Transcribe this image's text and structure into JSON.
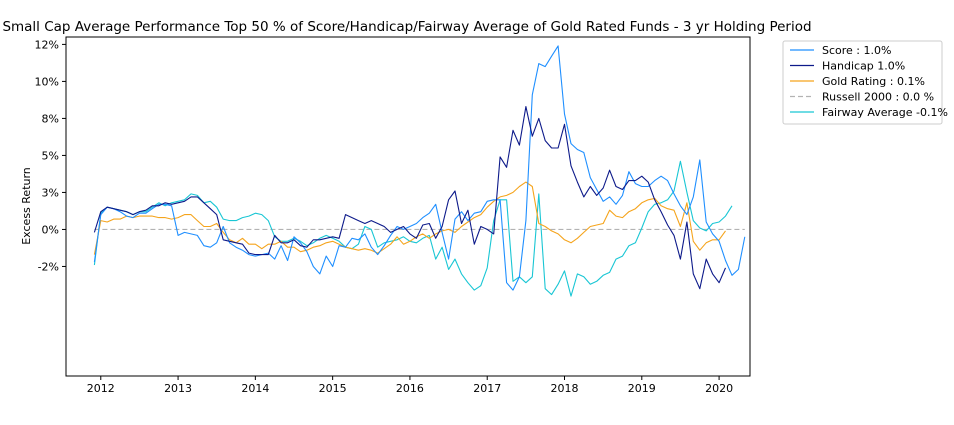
{
  "chart_data": {
    "type": "line",
    "title": "Small Cap Average Performance Top 50 % of Score/Handicap/Fairway Average of Gold Rated Funds - 3 yr Holding Period",
    "xlabel": "",
    "ylabel": "Excess Return",
    "xlim": [
      2011.55,
      2020.4
    ],
    "ylim": [
      -0.099,
      0.13
    ],
    "xticks": [
      2012,
      2013,
      2014,
      2015,
      2016,
      2017,
      2018,
      2019,
      2020
    ],
    "xtick_labels": [
      "2012",
      "2013",
      "2014",
      "2015",
      "2016",
      "2017",
      "2018",
      "2019",
      "2020"
    ],
    "yticks": [
      -0.025,
      0.0,
      0.025,
      0.05,
      0.075,
      0.1,
      0.125
    ],
    "ytick_labels": [
      "-2%",
      "0%",
      "3%",
      "5%",
      "8%",
      "10%",
      "12%"
    ],
    "grid": false,
    "legend_position": "outside-right",
    "x_start": 2011.917,
    "x_step": 0.08333,
    "series": [
      {
        "name": "Score : 1.0%",
        "color": "#1f8fff",
        "dash": "solid",
        "values": [
          -0.022,
          0.01,
          0.015,
          0.014,
          0.012,
          0.009,
          0.008,
          0.011,
          0.011,
          0.014,
          0.017,
          0.017,
          0.016,
          -0.004,
          -0.002,
          -0.003,
          -0.004,
          -0.011,
          -0.012,
          -0.009,
          0.002,
          -0.009,
          -0.012,
          -0.014,
          -0.017,
          -0.018,
          -0.017,
          -0.016,
          -0.02,
          -0.011,
          -0.021,
          -0.005,
          -0.009,
          -0.015,
          -0.025,
          -0.03,
          -0.018,
          -0.025,
          -0.011,
          -0.012,
          -0.006,
          -0.007,
          -0.003,
          -0.012,
          -0.017,
          -0.011,
          -0.004,
          0.002,
          0.0,
          0.002,
          0.004,
          0.008,
          0.011,
          0.017,
          -0.002,
          -0.02,
          0.007,
          0.012,
          0.006,
          0.011,
          0.012,
          0.019,
          0.02,
          0.02,
          -0.036,
          -0.041,
          -0.032,
          0.006,
          0.091,
          0.112,
          0.11,
          0.117,
          0.124,
          0.078,
          0.058,
          0.054,
          0.052,
          0.035,
          0.027,
          0.019,
          0.022,
          0.017,
          0.023,
          0.039,
          0.031,
          0.029,
          0.029,
          0.033,
          0.036,
          0.033,
          0.024,
          0.016,
          0.01,
          0.022,
          0.047,
          0.005,
          -0.003,
          -0.008,
          -0.021,
          -0.031,
          -0.027,
          -0.005
        ]
      },
      {
        "name": "Handicap 1.0%",
        "color": "#0d1a8a",
        "dash": "solid",
        "values": [
          -0.002,
          0.012,
          0.015,
          0.014,
          0.013,
          0.012,
          0.01,
          0.012,
          0.013,
          0.016,
          0.016,
          0.018,
          0.017,
          0.018,
          0.019,
          0.022,
          0.022,
          0.018,
          0.014,
          0.01,
          -0.007,
          -0.008,
          -0.009,
          -0.01,
          -0.016,
          -0.017,
          -0.017,
          -0.017,
          -0.004,
          -0.009,
          -0.009,
          -0.007,
          -0.011,
          -0.012,
          -0.007,
          -0.007,
          -0.006,
          -0.005,
          -0.006,
          0.01,
          0.008,
          0.006,
          0.004,
          0.006,
          0.004,
          0.002,
          -0.002,
          0.0,
          0.002,
          -0.003,
          -0.006,
          0.003,
          0.004,
          -0.006,
          0.002,
          0.02,
          0.026,
          0.004,
          0.013,
          -0.01,
          0.002,
          0.0,
          -0.003,
          0.049,
          0.042,
          0.067,
          0.057,
          0.083,
          0.063,
          0.075,
          0.06,
          0.055,
          0.055,
          0.071,
          0.043,
          0.032,
          0.022,
          0.029,
          0.023,
          0.028,
          0.04,
          0.029,
          0.027,
          0.033,
          0.033,
          0.036,
          0.032,
          0.02,
          0.012,
          0.003,
          -0.004,
          -0.02,
          0.005,
          -0.03,
          -0.04,
          -0.02,
          -0.03,
          -0.036,
          -0.026
        ]
      },
      {
        "name": "Gold Rating : 0.1%",
        "color": "#f5a41c",
        "dash": "solid",
        "values": [
          -0.017,
          0.006,
          0.005,
          0.007,
          0.007,
          0.009,
          0.008,
          0.009,
          0.009,
          0.009,
          0.008,
          0.008,
          0.007,
          0.008,
          0.01,
          0.01,
          0.006,
          0.002,
          0.002,
          0.004,
          -0.002,
          -0.007,
          -0.009,
          -0.006,
          -0.01,
          -0.01,
          -0.013,
          -0.01,
          -0.01,
          -0.008,
          -0.012,
          -0.012,
          -0.015,
          -0.014,
          -0.012,
          -0.011,
          -0.009,
          -0.008,
          -0.01,
          -0.012,
          -0.013,
          -0.014,
          -0.013,
          -0.014,
          -0.016,
          -0.013,
          -0.01,
          -0.005,
          -0.01,
          -0.008,
          -0.005,
          -0.003,
          -0.006,
          -0.003,
          -0.001,
          0.0,
          -0.002,
          0.002,
          0.005,
          0.008,
          0.01,
          0.015,
          0.019,
          0.022,
          0.023,
          0.025,
          0.029,
          0.032,
          0.029,
          0.004,
          0.002,
          -0.001,
          -0.003,
          -0.007,
          -0.009,
          -0.006,
          -0.002,
          0.002,
          0.003,
          0.004,
          0.013,
          0.009,
          0.008,
          0.012,
          0.014,
          0.018,
          0.02,
          0.021,
          0.016,
          0.014,
          0.013,
          0.002,
          0.018,
          -0.008,
          -0.014,
          -0.009,
          -0.007,
          -0.007,
          -0.001
        ]
      },
      {
        "name": "Russell 2000 : 0.0 %",
        "color": "#b3b3b3",
        "dash": "dashed",
        "values": [
          0,
          0,
          0,
          0,
          0,
          0,
          0,
          0,
          0,
          0,
          0,
          0,
          0,
          0,
          0,
          0,
          0,
          0,
          0,
          0,
          0,
          0,
          0,
          0,
          0,
          0,
          0,
          0,
          0,
          0,
          0,
          0,
          0,
          0,
          0,
          0,
          0,
          0,
          0,
          0,
          0,
          0,
          0,
          0,
          0,
          0,
          0,
          0,
          0,
          0,
          0,
          0,
          0,
          0,
          0,
          0,
          0,
          0,
          0,
          0,
          0,
          0,
          0,
          0,
          0,
          0,
          0,
          0,
          0,
          0,
          0,
          0,
          0,
          0,
          0,
          0,
          0,
          0,
          0,
          0,
          0,
          0,
          0,
          0,
          0,
          0,
          0,
          0,
          0,
          0,
          0,
          0,
          0,
          0,
          0,
          0,
          0,
          0,
          0,
          0,
          0,
          0
        ]
      },
      {
        "name": "Fairway Average -0.1%",
        "color": "#19c6d4",
        "dash": "solid",
        "values": [
          -0.024,
          0.011,
          0.015,
          0.014,
          0.013,
          0.012,
          0.01,
          0.012,
          0.012,
          0.015,
          0.018,
          0.016,
          0.018,
          0.019,
          0.02,
          0.024,
          0.023,
          0.018,
          0.019,
          0.015,
          0.007,
          0.006,
          0.006,
          0.008,
          0.009,
          0.011,
          0.01,
          0.006,
          -0.005,
          -0.008,
          -0.008,
          -0.006,
          -0.008,
          -0.011,
          -0.009,
          -0.006,
          -0.004,
          -0.006,
          -0.008,
          -0.012,
          -0.013,
          -0.01,
          0.002,
          0.0,
          -0.012,
          -0.009,
          -0.008,
          -0.007,
          -0.005,
          -0.008,
          -0.009,
          -0.006,
          -0.004,
          -0.02,
          -0.012,
          -0.027,
          -0.02,
          -0.03,
          -0.036,
          -0.041,
          -0.038,
          -0.026,
          0.006,
          0.02,
          0.02,
          -0.035,
          -0.032,
          -0.036,
          -0.032,
          0.024,
          -0.04,
          -0.044,
          -0.037,
          -0.028,
          -0.045,
          -0.03,
          -0.032,
          -0.037,
          -0.035,
          -0.031,
          -0.029,
          -0.02,
          -0.018,
          -0.011,
          -0.009,
          0.001,
          0.012,
          0.017,
          0.018,
          0.02,
          0.026,
          0.046,
          0.025,
          0.006,
          0.001,
          -0.001,
          0.004,
          0.005,
          0.009,
          0.016
        ]
      }
    ]
  }
}
